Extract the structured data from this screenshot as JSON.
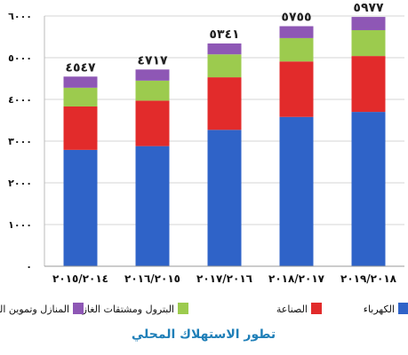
{
  "chart_data": {
    "type": "bar",
    "stacked": true,
    "title": "تطور الاستهلاك المحلي",
    "categories": [
      "٢٠١٥/٢٠١٤",
      "٢٠١٦/٢٠١٥",
      "٢٠١٧/٢٠١٦",
      "٢٠١٨/٢٠١٧",
      "٢٠١٩/٢٠١٨"
    ],
    "totals": [
      4547,
      4717,
      5341,
      5755,
      5977
    ],
    "total_labels": [
      "٤٥٤٧",
      "٤٧١٧",
      "٥٣٤١",
      "٥٧٥٥",
      "٥٩٧٧"
    ],
    "ylim": [
      0,
      6000
    ],
    "yticks": [
      0,
      1000,
      2000,
      3000,
      4000,
      5000,
      6000
    ],
    "ytick_labels": [
      "٠",
      "١٠٠٠",
      "٢٠٠٠",
      "٣٠٠٠",
      "٤٠٠٠",
      "٥٠٠٠",
      "٦٠٠٠"
    ],
    "grid": true,
    "legend_position": "bottom",
    "series": [
      {
        "name": "الكهرباء",
        "color": "#2f63c8",
        "values": [
          2790,
          2880,
          3270,
          3580,
          3700
        ]
      },
      {
        "name": "الصناعة",
        "color": "#e22b2b",
        "values": [
          1040,
          1090,
          1260,
          1330,
          1340
        ]
      },
      {
        "name": "البترول ومشتقات الغاز",
        "color": "#9ccb4e",
        "values": [
          450,
          480,
          550,
          560,
          620
        ]
      },
      {
        "name": "المنازل وتموين السيارات",
        "color": "#8e57b5",
        "values": [
          267,
          267,
          261,
          285,
          317
        ]
      }
    ]
  }
}
